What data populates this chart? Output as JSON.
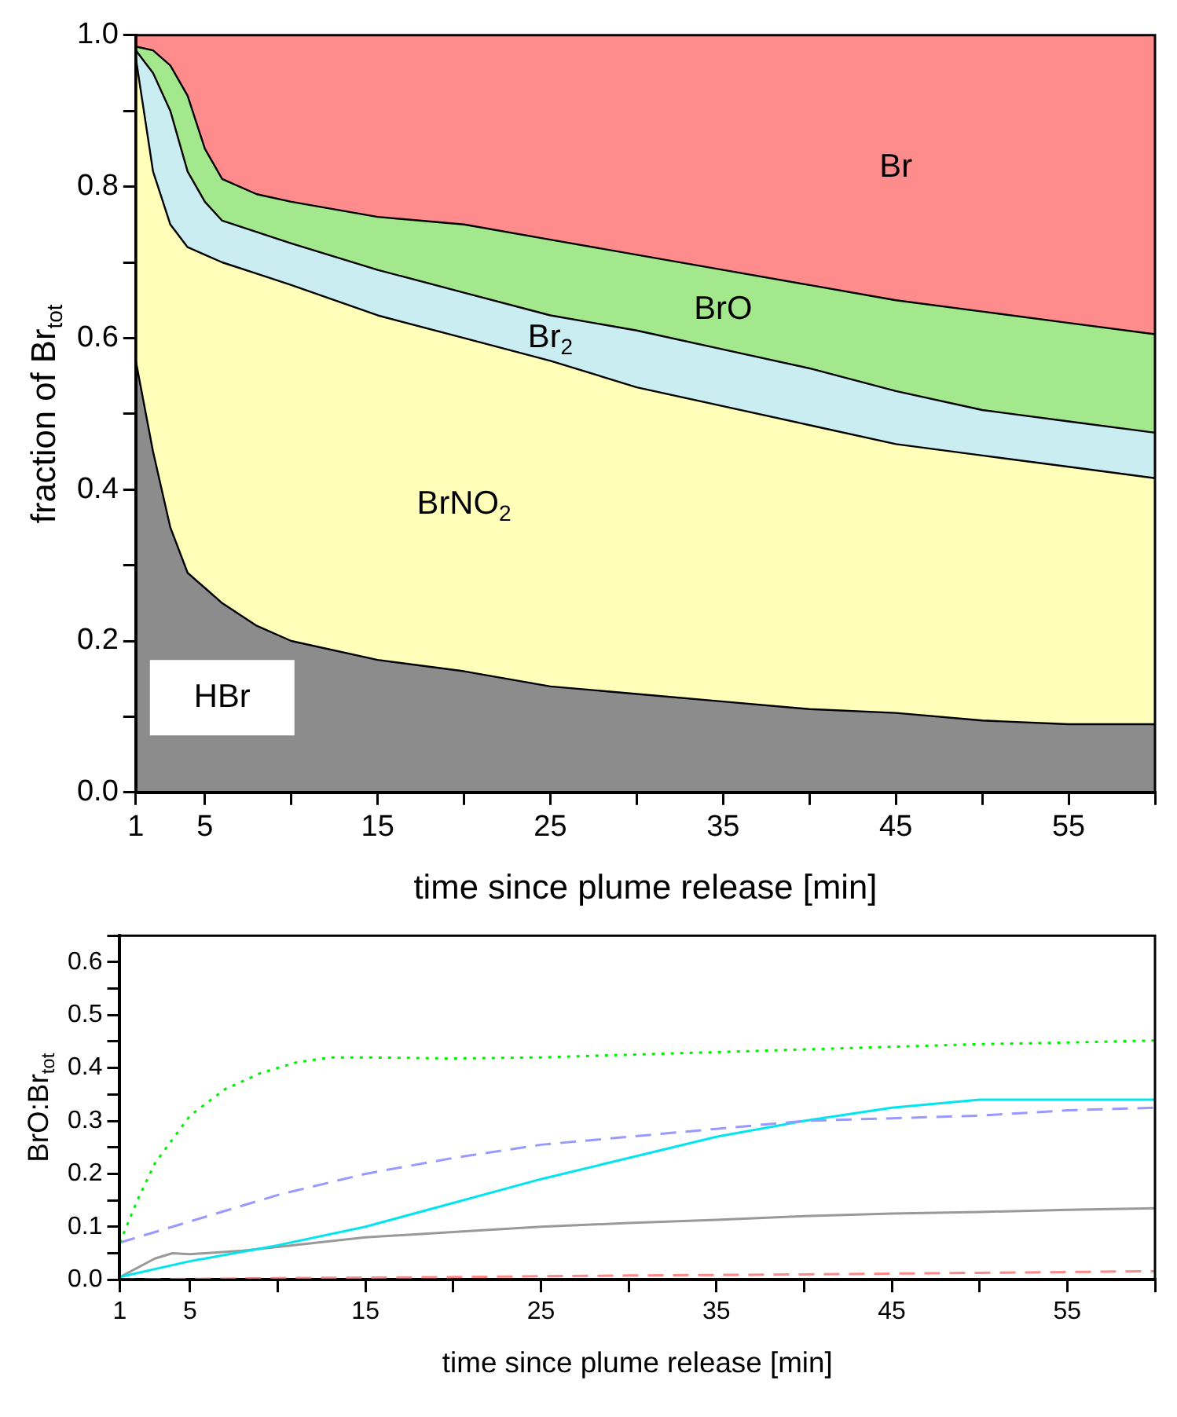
{
  "chart_data": [
    {
      "type": "area",
      "stacked": true,
      "xlabel": "time since plume release [min]",
      "ylabel": "fraction of Br$_{tot}$",
      "x": [
        1,
        2,
        3,
        4,
        5,
        6,
        8,
        10,
        15,
        20,
        25,
        30,
        35,
        40,
        45,
        50,
        55,
        60
      ],
      "series": [
        {
          "name": "HBr",
          "color": "#000000",
          "values": [
            0.57,
            0.45,
            0.35,
            0.29,
            0.27,
            0.25,
            0.22,
            0.2,
            0.175,
            0.16,
            0.14,
            0.13,
            0.12,
            0.11,
            0.105,
            0.095,
            0.09,
            0.09
          ]
        },
        {
          "name": "BrNO$_{2}$",
          "color": "#ffff66",
          "values": [
            0.4,
            0.37,
            0.4,
            0.43,
            0.44,
            0.45,
            0.465,
            0.47,
            0.455,
            0.44,
            0.43,
            0.405,
            0.39,
            0.375,
            0.355,
            0.35,
            0.34,
            0.325
          ]
        },
        {
          "name": "Br$_{2}$",
          "color": "#88d8e0",
          "values": [
            0.01,
            0.13,
            0.15,
            0.1,
            0.07,
            0.055,
            0.055,
            0.055,
            0.06,
            0.06,
            0.06,
            0.075,
            0.075,
            0.075,
            0.07,
            0.06,
            0.06,
            0.06
          ]
        },
        {
          "name": "BrO",
          "color": "#33cc00",
          "values": [
            0.005,
            0.03,
            0.06,
            0.1,
            0.07,
            0.055,
            0.05,
            0.055,
            0.07,
            0.09,
            0.1,
            0.1,
            0.105,
            0.11,
            0.12,
            0.13,
            0.13,
            0.13
          ]
        },
        {
          "name": "Br",
          "color": "#ff0000",
          "values": [
            0.015,
            0.02,
            0.04,
            0.08,
            0.15,
            0.19,
            0.21,
            0.22,
            0.24,
            0.25,
            0.27,
            0.29,
            0.31,
            0.33,
            0.35,
            0.365,
            0.38,
            0.395
          ]
        }
      ],
      "xlim": [
        1,
        60
      ],
      "xticks": [
        1,
        5,
        {
          "value": 10,
          "label": null
        },
        15,
        {
          "value": 20,
          "label": null
        },
        25,
        {
          "value": 30,
          "label": null
        },
        35,
        {
          "value": 40,
          "label": null
        },
        45,
        {
          "value": 50,
          "label": null
        },
        55,
        {
          "value": 60,
          "label": null
        }
      ],
      "ylim": [
        0,
        1
      ],
      "yticks": [
        {
          "value": 0,
          "label": "0.0"
        },
        {
          "value": 0.1,
          "label": null
        },
        0.2,
        {
          "value": 0.3,
          "label": null
        },
        0.4,
        {
          "value": 0.5,
          "label": null
        },
        0.6,
        {
          "value": 0.7,
          "label": null
        },
        0.8,
        {
          "value": 0.9,
          "label": null
        },
        {
          "value": 1,
          "label": "1.0"
        }
      ]
    },
    {
      "type": "line",
      "marker": "none",
      "xlabel": "time since plume release [min]",
      "ylabel": "BrO:Br$_{tot}$",
      "series": [
        {
          "color": "#00ee00",
          "line_style": "dotted",
          "x": [
            1,
            2,
            3,
            5,
            7,
            9,
            11,
            13,
            15,
            20,
            25,
            30,
            35,
            40,
            45,
            50,
            55,
            60
          ],
          "values": [
            0.07,
            0.15,
            0.22,
            0.31,
            0.36,
            0.39,
            0.41,
            0.42,
            0.42,
            0.418,
            0.42,
            0.425,
            0.43,
            0.435,
            0.44,
            0.445,
            0.448,
            0.452
          ]
        },
        {
          "color": "#9999ff",
          "line_style": "dashed",
          "x": [
            1,
            5,
            10,
            15,
            20,
            25,
            30,
            35,
            40,
            45,
            50,
            55,
            60
          ],
          "values": [
            0.07,
            0.11,
            0.16,
            0.2,
            0.23,
            0.255,
            0.27,
            0.285,
            0.3,
            0.305,
            0.31,
            0.32,
            0.325
          ]
        },
        {
          "color": "#00e5ee",
          "line_style": "solid",
          "x": [
            1,
            5,
            10,
            15,
            20,
            25,
            30,
            35,
            40,
            45,
            50,
            55,
            60
          ],
          "values": [
            0.005,
            0.035,
            0.065,
            0.1,
            0.145,
            0.19,
            0.23,
            0.27,
            0.3,
            0.325,
            0.34,
            0.34,
            0.34
          ]
        },
        {
          "color": "#999999",
          "line_style": "solid",
          "x": [
            1,
            3,
            4,
            5,
            8,
            10,
            15,
            20,
            25,
            30,
            35,
            40,
            45,
            50,
            55,
            60
          ],
          "values": [
            0.005,
            0.04,
            0.05,
            0.048,
            0.055,
            0.062,
            0.08,
            0.09,
            0.1,
            0.107,
            0.113,
            0.12,
            0.125,
            0.128,
            0.132,
            0.135
          ]
        },
        {
          "color": "#ff8888",
          "line_style": "dashed",
          "x": [
            1,
            10,
            20,
            30,
            40,
            50,
            60
          ],
          "values": [
            0,
            0.003,
            0.005,
            0.008,
            0.01,
            0.013,
            0.016
          ]
        }
      ],
      "xlim": [
        1,
        60
      ],
      "xticks": [
        1,
        5,
        {
          "value": 10,
          "label": null
        },
        15,
        {
          "value": 20,
          "label": null
        },
        25,
        {
          "value": 30,
          "label": null
        },
        35,
        {
          "value": 40,
          "label": null
        },
        45,
        {
          "value": 50,
          "label": null
        },
        55,
        {
          "value": 60,
          "label": null
        }
      ],
      "ylim": [
        0,
        0.65
      ],
      "yticks": [
        {
          "value": 0,
          "label": "0.0"
        },
        {
          "value": 0.05,
          "label": null
        },
        0.1,
        {
          "value": 0.15,
          "label": null
        },
        0.2,
        {
          "value": 0.25,
          "label": null
        },
        0.3,
        {
          "value": 0.35,
          "label": null
        },
        0.4,
        {
          "value": 0.45,
          "label": null
        },
        0.5,
        {
          "value": 0.55,
          "label": null
        },
        0.6,
        {
          "value": 0.65,
          "label": null
        }
      ]
    }
  ]
}
